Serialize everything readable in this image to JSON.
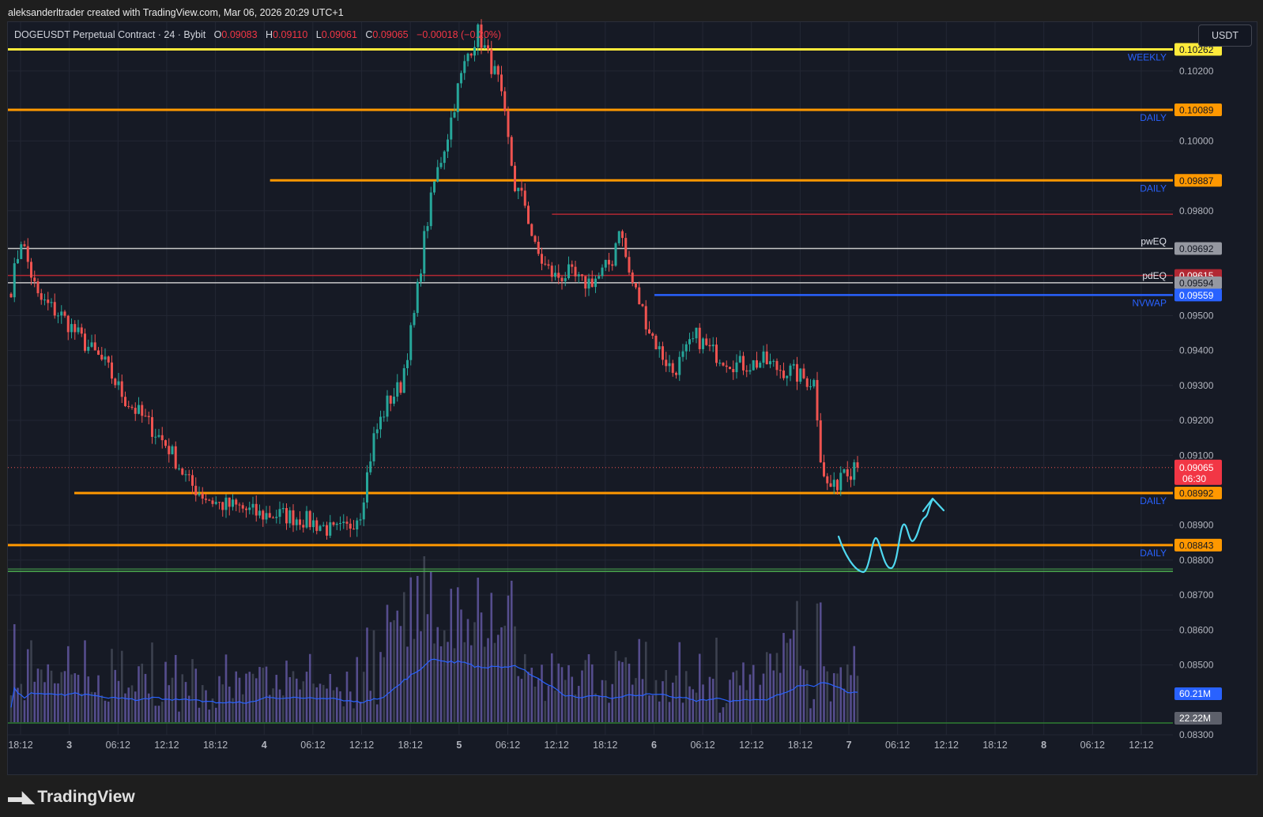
{
  "attribution": "aleksanderltrader created with TradingView.com, Mar 06, 2026 20:29 UTC+1",
  "brand": {
    "logo_icon": "tradingview-logo-icon",
    "name": "TradingView"
  },
  "header": {
    "symbol": "DOGEUSDT Perpetual Contract · 24 · Bybit",
    "open_label": "O",
    "open": "0.09083",
    "high_label": "H",
    "high": "0.09110",
    "low_label": "L",
    "low": "0.09061",
    "close_label": "C",
    "close": "0.09065",
    "change": "−0.00018 (−0.20%)",
    "currency": "USDT"
  },
  "colors": {
    "background": "#161a25",
    "up": "#26a69a",
    "down": "#ef5350",
    "daily": "#ff9800",
    "weekly": "#ffeb3b",
    "eq": "#c8c8c8",
    "nvwap": "#2962ff",
    "previous_high": "#b22833",
    "volume_ma": "#2962ff",
    "arrow": "#4fd8f0",
    "volume": "#6b5fb0"
  },
  "chart_data": {
    "type": "candlestick",
    "symbol": "DOGEUSDT",
    "ylim": [
      0.083,
      0.1034
    ],
    "y_ticks": [
      "0.10200",
      "0.10000",
      "0.09800",
      "0.09500",
      "0.09400",
      "0.09300",
      "0.09200",
      "0.09100",
      "0.08900",
      "0.08800",
      "0.08700",
      "0.08600",
      "0.08500",
      "0.08300"
    ],
    "x_ticks": [
      "18:12",
      "3",
      "06:12",
      "12:12",
      "18:12",
      "4",
      "06:12",
      "12:12",
      "18:12",
      "5",
      "06:12",
      "12:12",
      "18:12",
      "6",
      "06:12",
      "12:12",
      "18:12",
      "7",
      "06:12",
      "12:12",
      "18:12",
      "8",
      "06:12",
      "12:12"
    ],
    "x_tick_bold": [
      "3",
      "4",
      "5",
      "6",
      "7",
      "8"
    ],
    "candle_count": 240,
    "waypoints": [
      [
        0,
        0.0958
      ],
      [
        3,
        0.0972
      ],
      [
        8,
        0.0955
      ],
      [
        15,
        0.095
      ],
      [
        22,
        0.0942
      ],
      [
        28,
        0.0936
      ],
      [
        34,
        0.0926
      ],
      [
        40,
        0.092
      ],
      [
        47,
        0.0912
      ],
      [
        53,
        0.0902
      ],
      [
        58,
        0.0898
      ],
      [
        62,
        0.0896
      ],
      [
        68,
        0.0895
      ],
      [
        74,
        0.0893
      ],
      [
        80,
        0.0893
      ],
      [
        86,
        0.0892
      ],
      [
        92,
        0.089
      ],
      [
        96,
        0.0888
      ],
      [
        100,
        0.0889
      ],
      [
        104,
        0.0894
      ],
      [
        108,
        0.0915
      ],
      [
        112,
        0.0925
      ],
      [
        116,
        0.093
      ],
      [
        120,
        0.095
      ],
      [
        123,
        0.0972
      ],
      [
        126,
        0.0988
      ],
      [
        130,
        0.1002
      ],
      [
        133,
        0.1015
      ],
      [
        136,
        0.1025
      ],
      [
        139,
        0.1031
      ],
      [
        142,
        0.1024
      ],
      [
        145,
        0.1017
      ],
      [
        147,
        0.1006
      ],
      [
        150,
        0.0987
      ],
      [
        153,
        0.0982
      ],
      [
        156,
        0.0969
      ],
      [
        159,
        0.0964
      ],
      [
        162,
        0.0961
      ],
      [
        166,
        0.0962
      ],
      [
        170,
        0.0959
      ],
      [
        175,
        0.0961
      ],
      [
        179,
        0.0966
      ],
      [
        181,
        0.0976
      ],
      [
        184,
        0.0962
      ],
      [
        187,
        0.0954
      ],
      [
        190,
        0.0946
      ],
      [
        193,
        0.094
      ],
      [
        197,
        0.0934
      ],
      [
        200,
        0.0938
      ],
      [
        204,
        0.0944
      ],
      [
        208,
        0.094
      ],
      [
        212,
        0.0938
      ],
      [
        216,
        0.0936
      ],
      [
        220,
        0.0936
      ],
      [
        224,
        0.0937
      ],
      [
        228,
        0.0935
      ],
      [
        232,
        0.0934
      ],
      [
        236,
        0.0932
      ],
      [
        239,
        0.0931
      ]
    ],
    "tail": [
      0.092,
      0.0908,
      0.0904,
      0.0902,
      0.0901,
      0.0903,
      0.09,
      0.0905,
      0.0906,
      0.0904,
      0.0903,
      0.0908,
      0.09065
    ],
    "levels": [
      {
        "price": 0.10262,
        "value": "0.10262",
        "name": "WEEKLY",
        "kind": "weekly",
        "start": 0.0
      },
      {
        "price": 0.10089,
        "value": "0.10089",
        "name": "DAILY",
        "kind": "daily",
        "start": 0.0
      },
      {
        "price": 0.09887,
        "value": "0.09887",
        "name": "DAILY",
        "kind": "daily",
        "start": 0.225
      },
      {
        "price": 0.0979,
        "value": "",
        "name": "",
        "kind": "previous_high",
        "start": 0.467
      },
      {
        "price": 0.09692,
        "value": "0.09692",
        "name": "pwEQ",
        "kind": "eq",
        "start": 0.0
      },
      {
        "price": 0.09615,
        "value": "0.09615",
        "name": "",
        "kind": "previous_high",
        "start": 0.0
      },
      {
        "price": 0.09594,
        "value": "0.09594",
        "name": "pdEQ",
        "kind": "eq",
        "start": 0.0
      },
      {
        "price": 0.09559,
        "value": "0.09559",
        "name": "NVWAP",
        "kind": "nvwap",
        "start": 0.555
      },
      {
        "price": 0.08992,
        "value": "0.08992",
        "name": "DAILY",
        "kind": "daily",
        "start": 0.057
      },
      {
        "price": 0.08843,
        "value": "0.08843",
        "name": "DAILY",
        "kind": "daily",
        "start": 0.0
      },
      {
        "price": 0.08768,
        "value": "",
        "name": "",
        "kind": "green",
        "start": 0.0
      }
    ],
    "last_price": {
      "value": "0.09065",
      "countdown": "06:30"
    },
    "volume": {
      "ma_value": "60.21M",
      "ma_label_price": 0.08846,
      "second_value": "22.22M",
      "second_label_price": 0.08331
    }
  }
}
